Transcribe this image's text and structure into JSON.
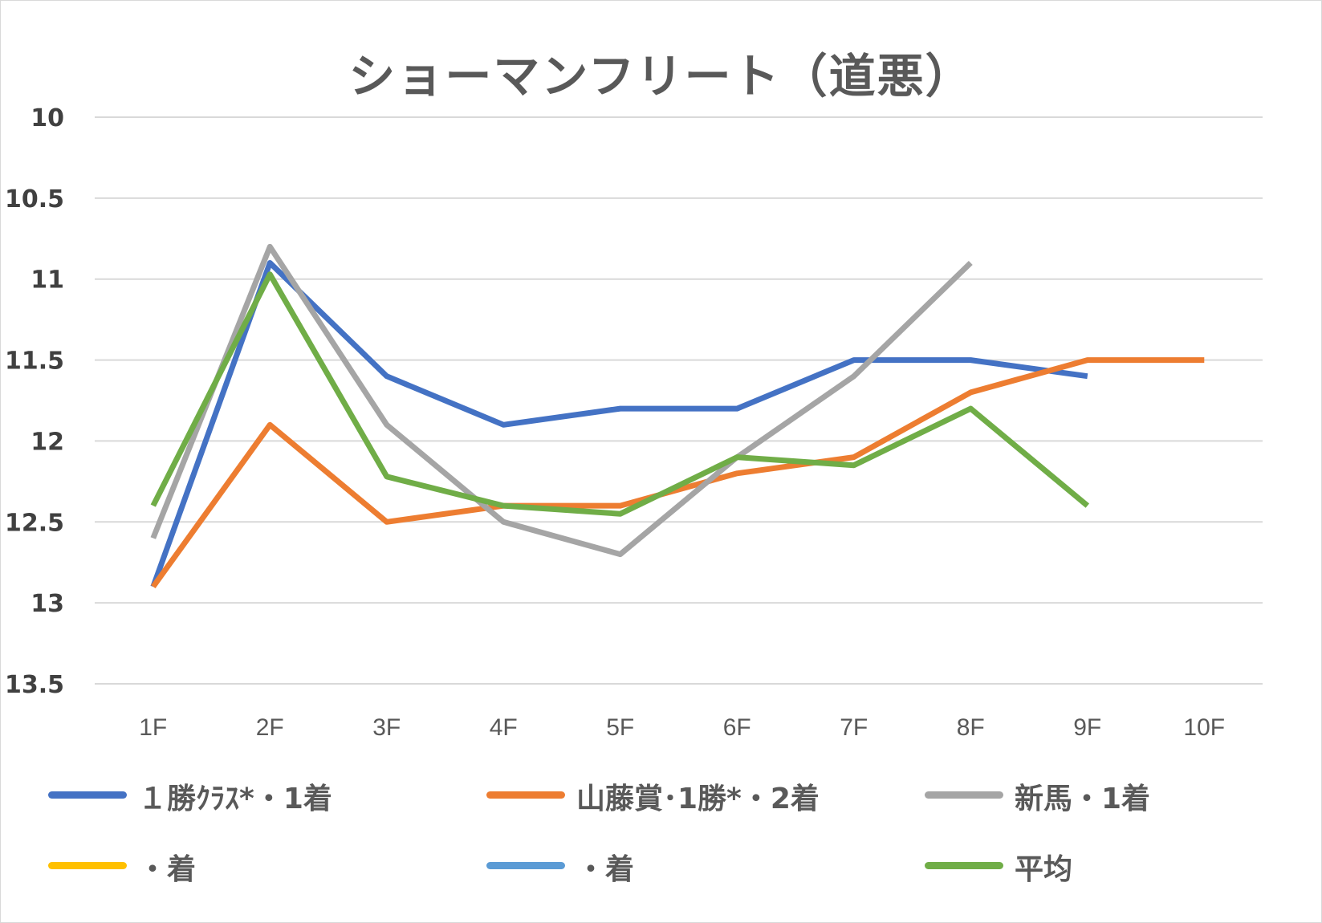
{
  "chart_data": {
    "type": "line",
    "title": "ショーマンフリート（道悪）",
    "categories": [
      "1F",
      "2F",
      "3F",
      "4F",
      "5F",
      "6F",
      "7F",
      "8F",
      "9F",
      "10F"
    ],
    "y_reversed": true,
    "ylim": [
      10,
      13.5
    ],
    "ytick_values": [
      10,
      10.5,
      11,
      11.5,
      12,
      12.5,
      13,
      13.5
    ],
    "ytick_labels": [
      "10",
      "10.5",
      "11",
      "11.5",
      "12",
      "12.5",
      "13",
      "13.5"
    ],
    "grid": true,
    "legend_position": "bottom",
    "series": [
      {
        "name": "１勝ｸﾗｽ*・1着",
        "color": "#4472C4",
        "values": [
          12.9,
          10.9,
          11.6,
          11.9,
          11.8,
          11.8,
          11.5,
          11.5,
          11.6,
          null
        ]
      },
      {
        "name": "山藤賞･1勝*・2着",
        "color": "#ED7D31",
        "values": [
          12.9,
          11.9,
          12.5,
          12.4,
          12.4,
          12.2,
          12.1,
          11.7,
          11.5,
          11.5
        ]
      },
      {
        "name": "新馬・1着",
        "color": "#A5A5A5",
        "values": [
          12.6,
          10.8,
          11.9,
          12.5,
          12.7,
          12.1,
          11.6,
          10.9,
          null,
          null
        ]
      },
      {
        "name": "・着",
        "color": "#FFC000",
        "values": [
          null,
          null,
          null,
          null,
          null,
          null,
          null,
          null,
          null,
          null
        ]
      },
      {
        "name": "・着",
        "color": "#5B9BD5",
        "values": [
          null,
          null,
          null,
          null,
          null,
          null,
          null,
          null,
          null,
          null
        ]
      },
      {
        "name": "平均",
        "color": "#70AD47",
        "values": [
          12.4,
          10.97,
          12.22,
          12.4,
          12.45,
          12.1,
          12.15,
          11.8,
          12.4,
          null
        ]
      }
    ]
  }
}
